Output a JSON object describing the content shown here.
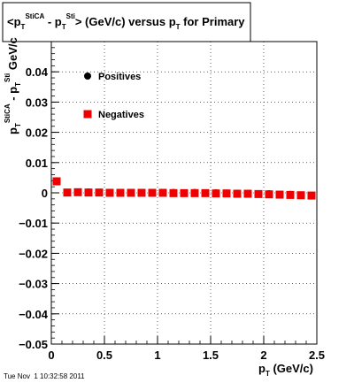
{
  "chart_data": {
    "type": "scatter",
    "title": {
      "parts": [
        {
          "t": "<p",
          "kind": "normal"
        },
        {
          "t": "T",
          "kind": "sub"
        },
        {
          "t": "StiCA",
          "kind": "sup"
        },
        {
          "t": " - p",
          "kind": "normal"
        },
        {
          "t": "T",
          "kind": "sub"
        },
        {
          "t": "Sti",
          "kind": "sup"
        },
        {
          "t": "> (GeV/c) versus p",
          "kind": "normal"
        },
        {
          "t": "T",
          "kind": "sub"
        },
        {
          "t": " for Primary",
          "kind": "normal"
        }
      ]
    },
    "xlabel": {
      "parts": [
        {
          "t": "p",
          "kind": "normal"
        },
        {
          "t": "T",
          "kind": "sub"
        },
        {
          "t": " (GeV/c)",
          "kind": "normal"
        }
      ]
    },
    "ylabel": {
      "parts": [
        {
          "t": "p",
          "kind": "normal"
        },
        {
          "t": "T",
          "kind": "sub"
        },
        {
          "t": "StiCA",
          "kind": "sup"
        },
        {
          "t": " - p",
          "kind": "normal"
        },
        {
          "t": "T",
          "kind": "sub"
        },
        {
          "t": "Sti",
          "kind": "sup"
        },
        {
          "t": " GeV/c",
          "kind": "normal"
        }
      ]
    },
    "xlim": [
      0,
      2.5
    ],
    "ylim": [
      -0.05,
      0.05
    ],
    "xticks": [
      {
        "v": 0,
        "label": "0"
      },
      {
        "v": 0.5,
        "label": "0.5"
      },
      {
        "v": 1,
        "label": "1"
      },
      {
        "v": 1.5,
        "label": "1.5"
      },
      {
        "v": 2,
        "label": "2"
      },
      {
        "v": 2.5,
        "label": "2.5"
      }
    ],
    "yticks": [
      {
        "v": -0.05,
        "label": "−0.05"
      },
      {
        "v": -0.04,
        "label": "−0.04"
      },
      {
        "v": -0.03,
        "label": "−0.03"
      },
      {
        "v": -0.02,
        "label": "−0.02"
      },
      {
        "v": -0.01,
        "label": "−0.01"
      },
      {
        "v": 0,
        "label": "0"
      },
      {
        "v": 0.01,
        "label": "0.01"
      },
      {
        "v": 0.02,
        "label": "0.02"
      },
      {
        "v": 0.03,
        "label": "0.03"
      },
      {
        "v": 0.04,
        "label": "0.04"
      }
    ],
    "grid": true,
    "legend_placement": "upper-left",
    "series": [
      {
        "name": "Positives",
        "marker": "circle",
        "color": "#000000",
        "x": [
          0.05,
          0.15,
          0.25,
          0.35,
          0.45,
          0.55,
          0.65,
          0.75,
          0.85,
          0.95,
          1.05,
          1.15,
          1.25,
          1.35,
          1.45,
          1.55,
          1.65,
          1.75,
          1.85,
          1.95,
          2.05,
          2.15,
          2.25,
          2.35,
          2.45
        ],
        "y": [
          0.004,
          0.0002,
          0.0003,
          0.0003,
          0.0002,
          0.0002,
          0.0001,
          0.0001,
          0.0001,
          0.0001,
          0.0001,
          0.0001,
          0.0,
          0.0001,
          0.0,
          0.0,
          -0.0001,
          -0.0001,
          -0.0002,
          -0.0003,
          -0.0003,
          -0.0005,
          -0.0005,
          -0.0007,
          -0.0008
        ]
      },
      {
        "name": "Negatives",
        "marker": "square",
        "color": "#ee0000",
        "x": [
          0.05,
          0.15,
          0.25,
          0.35,
          0.45,
          0.55,
          0.65,
          0.75,
          0.85,
          0.95,
          1.05,
          1.15,
          1.25,
          1.35,
          1.45,
          1.55,
          1.65,
          1.75,
          1.85,
          1.95,
          2.05,
          2.15,
          2.25,
          2.35,
          2.45
        ],
        "y": [
          0.0038,
          0.0001,
          0.0002,
          0.0001,
          0.0001,
          0.0,
          0.0,
          0.0,
          0.0,
          0.0,
          0.0,
          -0.0001,
          -0.0001,
          -0.0001,
          -0.0001,
          -0.0002,
          -0.0002,
          -0.0003,
          -0.0003,
          -0.0004,
          -0.0005,
          -0.0006,
          -0.0007,
          -0.0008,
          -0.0009
        ]
      }
    ]
  },
  "footer": {
    "timestamp": "Tue Nov  1 10:32:58 2011"
  }
}
